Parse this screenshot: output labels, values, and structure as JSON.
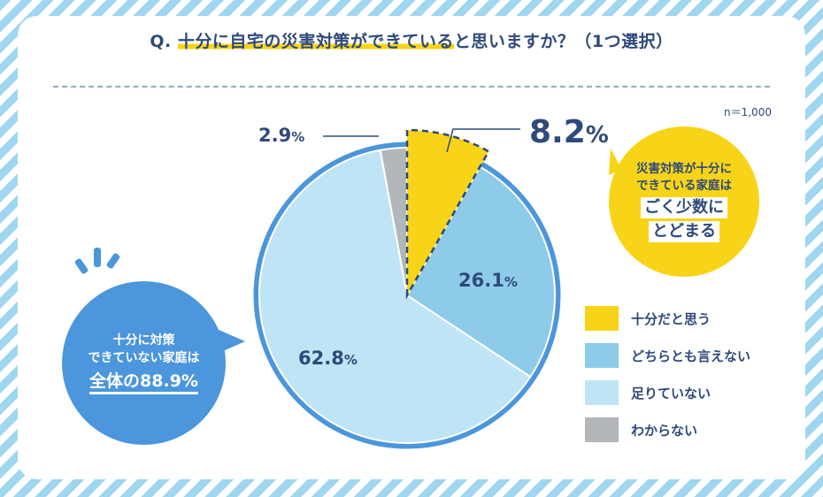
{
  "header": {
    "question_prefix": "Q. ",
    "question_highlight": "十分に自宅の災害対策ができている",
    "question_suffix": "と思いますか？（1つ選択）"
  },
  "sample_size": "n＝1,000",
  "chart_data": {
    "type": "pie",
    "title": "Q. 十分に自宅の災害対策ができていると思いますか？（1つ選択）",
    "categories": [
      "十分だと思う",
      "どちらとも言えない",
      "足りていない",
      "わからない"
    ],
    "values": [
      8.2,
      26.1,
      62.8,
      2.9
    ],
    "unit": "%",
    "value_labels": [
      "8.2%",
      "26.1%",
      "62.8%",
      "2.9%"
    ],
    "colors": [
      "#f7d417",
      "#8ecbe8",
      "#bfe4f5",
      "#b4b7ba"
    ],
    "legend_position": "right"
  },
  "callouts": {
    "right_line1": "災害対策が十分に",
    "right_line2": "できている家庭は",
    "right_line3": "ごく少数に",
    "right_line4": "とどまる",
    "left_line1": "十分に対策",
    "left_line2": "できていない家庭は",
    "left_line3": "全体の88.9%"
  },
  "legend": [
    {
      "label": "十分だと思う",
      "color": "#f7d417"
    },
    {
      "label": "どちらとも言えない",
      "color": "#8ecbe8"
    },
    {
      "label": "足りていない",
      "color": "#bfe4f5"
    },
    {
      "label": "わからない",
      "color": "#b4b7ba"
    }
  ],
  "colors": {
    "text": "#2e4a7a",
    "pie_border": "#4b96dc",
    "highlight": "#f7d417"
  }
}
